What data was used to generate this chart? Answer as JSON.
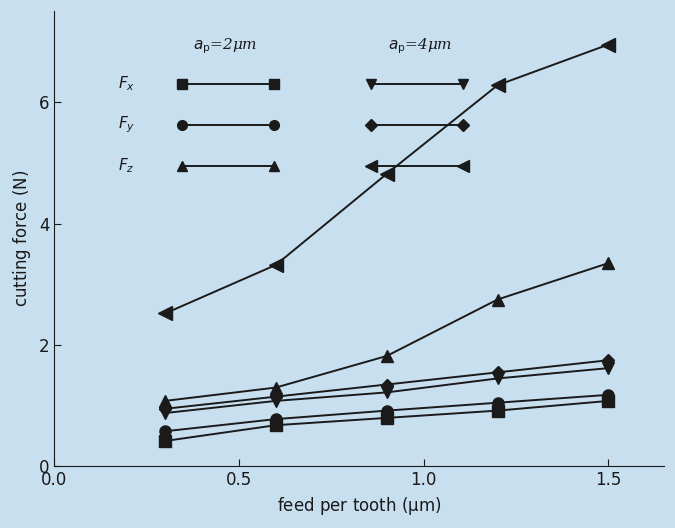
{
  "x": [
    0.3,
    0.6,
    0.9,
    1.2,
    1.5
  ],
  "ap2_Fx": [
    0.42,
    0.68,
    0.8,
    0.92,
    1.08
  ],
  "ap2_Fy": [
    0.58,
    0.78,
    0.92,
    1.05,
    1.18
  ],
  "ap2_Fz": [
    1.08,
    1.3,
    1.82,
    2.75,
    3.35
  ],
  "ap4_Fx": [
    0.88,
    1.08,
    1.22,
    1.45,
    1.62
  ],
  "ap4_Fy": [
    0.95,
    1.15,
    1.35,
    1.55,
    1.75
  ],
  "ap4_Fz": [
    2.52,
    3.32,
    4.82,
    6.28,
    6.95
  ],
  "xlim": [
    0.0,
    1.65
  ],
  "ylim": [
    0,
    7.5
  ],
  "xticks": [
    0.0,
    0.5,
    1.0,
    1.5
  ],
  "yticks": [
    0,
    2,
    4,
    6
  ],
  "bg_color": "#c8dff0",
  "line_color": "#1a1a1a",
  "markers_ap2": [
    "s",
    "o",
    "^"
  ],
  "markers_ap4": [
    "v",
    "D",
    "<"
  ],
  "legend_labels": [
    "$F_x$",
    "$F_y$",
    "$F_z$"
  ],
  "ap2_label": "$a_{\\mathrm{p}}$=2μm",
  "ap4_label": "$a_{\\mathrm{p}}$=4μm",
  "xlabel": "feed per tooth",
  "ylabel": "cutting force",
  "xlabel_unit": "μm",
  "ylabel_unit": "N"
}
